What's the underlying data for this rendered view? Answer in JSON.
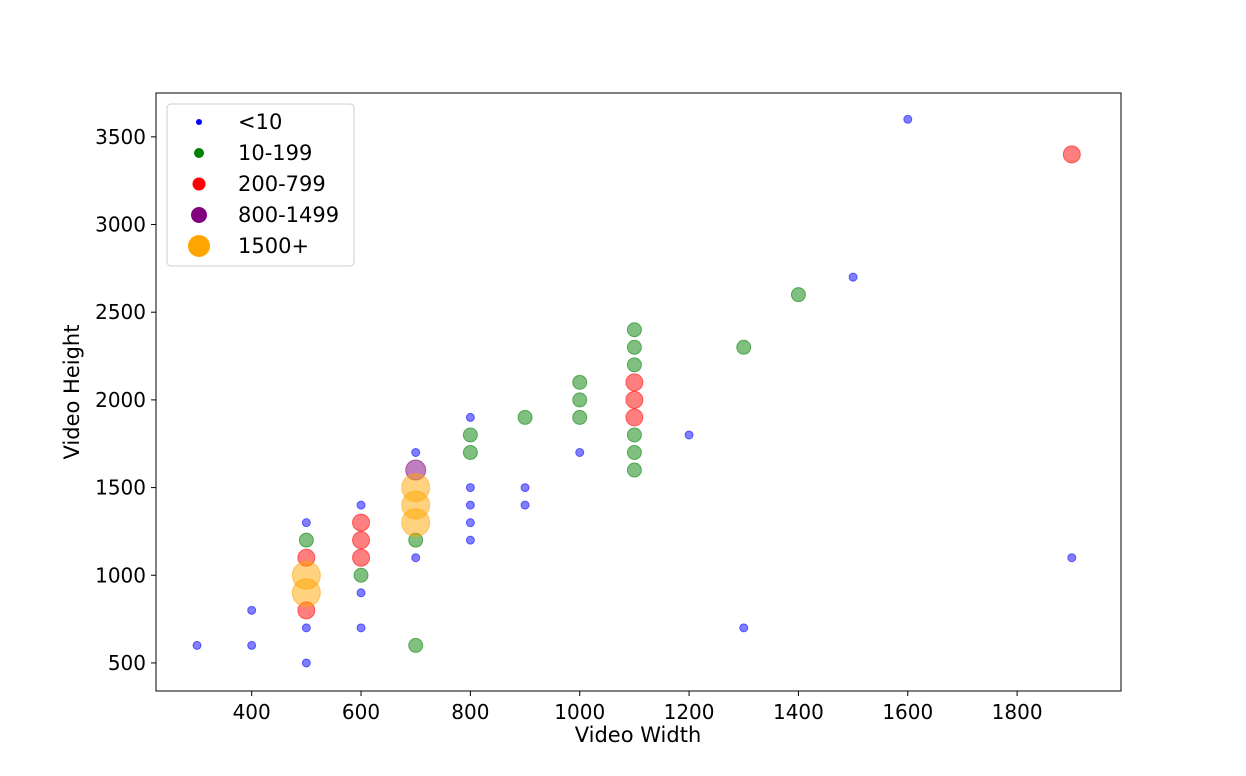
{
  "chart_data": {
    "type": "scatter",
    "xlabel": "Video Width",
    "ylabel": "Video Height",
    "xlim": [
      225,
      1990
    ],
    "ylim": [
      340,
      3750
    ],
    "xticks": [
      400,
      600,
      800,
      1000,
      1200,
      1400,
      1600,
      1800
    ],
    "yticks": [
      500,
      1000,
      1500,
      2000,
      2500,
      3000,
      3500
    ],
    "grid": false,
    "legend_position": "top-left",
    "series": [
      {
        "name": "<10",
        "color": "#0000ff",
        "points": [
          {
            "x": 300,
            "y": 600
          },
          {
            "x": 400,
            "y": 800
          },
          {
            "x": 400,
            "y": 600
          },
          {
            "x": 500,
            "y": 1300
          },
          {
            "x": 500,
            "y": 700
          },
          {
            "x": 500,
            "y": 500
          },
          {
            "x": 600,
            "y": 1400
          },
          {
            "x": 600,
            "y": 900
          },
          {
            "x": 600,
            "y": 700
          },
          {
            "x": 700,
            "y": 1700
          },
          {
            "x": 700,
            "y": 1100
          },
          {
            "x": 800,
            "y": 1900
          },
          {
            "x": 800,
            "y": 1500
          },
          {
            "x": 800,
            "y": 1400
          },
          {
            "x": 800,
            "y": 1300
          },
          {
            "x": 800,
            "y": 1200
          },
          {
            "x": 900,
            "y": 1500
          },
          {
            "x": 900,
            "y": 1400
          },
          {
            "x": 1000,
            "y": 1700
          },
          {
            "x": 1200,
            "y": 1800
          },
          {
            "x": 1300,
            "y": 700
          },
          {
            "x": 1500,
            "y": 2700
          },
          {
            "x": 1600,
            "y": 3600
          },
          {
            "x": 1900,
            "y": 1100
          }
        ]
      },
      {
        "name": "10-199",
        "color": "#008000",
        "points": [
          {
            "x": 500,
            "y": 1200
          },
          {
            "x": 600,
            "y": 1000
          },
          {
            "x": 700,
            "y": 1200
          },
          {
            "x": 700,
            "y": 600
          },
          {
            "x": 800,
            "y": 1800
          },
          {
            "x": 800,
            "y": 1700
          },
          {
            "x": 900,
            "y": 1900
          },
          {
            "x": 1000,
            "y": 2100
          },
          {
            "x": 1000,
            "y": 2000
          },
          {
            "x": 1000,
            "y": 1900
          },
          {
            "x": 1100,
            "y": 2400
          },
          {
            "x": 1100,
            "y": 2300
          },
          {
            "x": 1100,
            "y": 2200
          },
          {
            "x": 1100,
            "y": 1800
          },
          {
            "x": 1100,
            "y": 1700
          },
          {
            "x": 1100,
            "y": 1600
          },
          {
            "x": 1300,
            "y": 2300
          },
          {
            "x": 1400,
            "y": 2600
          }
        ]
      },
      {
        "name": "200-799",
        "color": "#ff0000",
        "points": [
          {
            "x": 500,
            "y": 1100
          },
          {
            "x": 500,
            "y": 800
          },
          {
            "x": 600,
            "y": 1300
          },
          {
            "x": 600,
            "y": 1200
          },
          {
            "x": 600,
            "y": 1100
          },
          {
            "x": 1100,
            "y": 2100
          },
          {
            "x": 1100,
            "y": 2000
          },
          {
            "x": 1100,
            "y": 1900
          },
          {
            "x": 1900,
            "y": 3400
          }
        ]
      },
      {
        "name": "800-1499",
        "color": "#800080",
        "points": [
          {
            "x": 700,
            "y": 1600
          }
        ]
      },
      {
        "name": "1500+",
        "color": "#ffa500",
        "points": [
          {
            "x": 500,
            "y": 1000
          },
          {
            "x": 500,
            "y": 900
          },
          {
            "x": 700,
            "y": 1500
          },
          {
            "x": 700,
            "y": 1400
          },
          {
            "x": 700,
            "y": 1300
          }
        ]
      }
    ]
  }
}
